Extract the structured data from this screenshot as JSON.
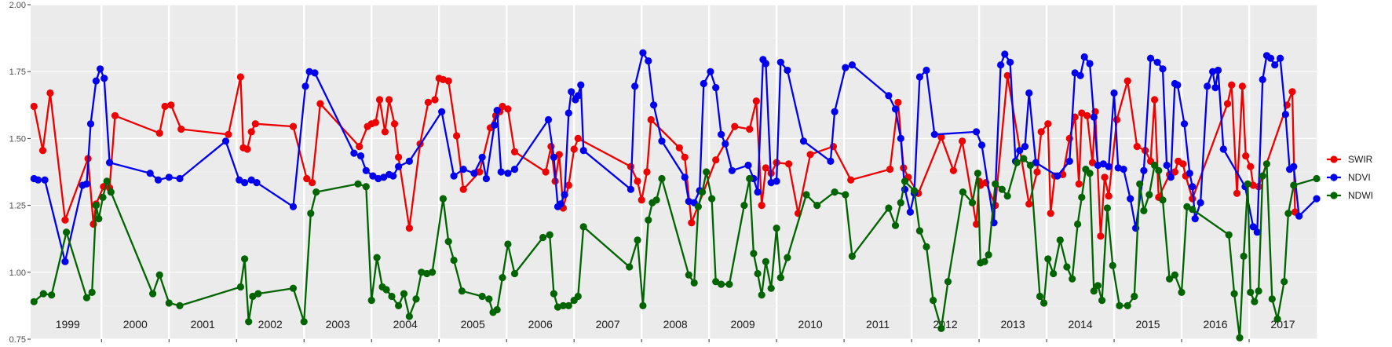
{
  "chart_data": {
    "type": "line",
    "title": "",
    "xlabel": "",
    "ylabel": "",
    "ylim": [
      0.75,
      2.0
    ],
    "xlim": [
      1998.95,
      2018.0
    ],
    "y_ticks": [
      "0.75",
      "1.00",
      "1.25",
      "1.50",
      "1.75",
      "2.00"
    ],
    "year_labels": [
      "1999",
      "2000",
      "2001",
      "2002",
      "2003",
      "2004",
      "2005",
      "2006",
      "2007",
      "2008",
      "2009",
      "2010",
      "2011",
      "2012",
      "2013",
      "2014",
      "2015",
      "2016",
      "2017"
    ],
    "grid": true,
    "legend_position": "right",
    "series": [
      {
        "name": "SWIR",
        "color": "#ee0000",
        "x": [
          1999.0,
          1999.13,
          1999.24,
          1999.46,
          1999.8,
          1999.88,
          1999.92,
          2000.03,
          2000.12,
          2000.2,
          2000.86,
          2000.94,
          2001.03,
          2001.18,
          2001.88,
          2002.06,
          2002.1,
          2002.16,
          2002.22,
          2002.28,
          2002.84,
          2003.04,
          2003.12,
          2003.24,
          2003.82,
          2003.94,
          2004.0,
          2004.06,
          2004.12,
          2004.2,
          2004.26,
          2004.34,
          2004.4,
          2004.56,
          2004.72,
          2004.84,
          2004.94,
          2005.0,
          2005.06,
          2005.14,
          2005.26,
          2005.36,
          2005.6,
          2005.76,
          2005.84,
          2005.9,
          2005.94,
          2006.02,
          2006.12,
          2006.58,
          2006.66,
          2006.72,
          2006.78,
          2006.84,
          2006.92,
          2007.0,
          2007.06,
          2007.84,
          2007.94,
          2008.0,
          2008.08,
          2008.14,
          2008.56,
          2008.64,
          2008.74,
          2009.1,
          2009.38,
          2009.6,
          2009.7,
          2009.78,
          2009.84,
          2009.92,
          2010.0,
          2010.18,
          2010.32,
          2010.5,
          2010.84,
          2011.1,
          2011.68,
          2011.8,
          2011.88,
          2011.95,
          2012.1,
          2012.44,
          2012.62,
          2012.75,
          2012.96,
          2013.0,
          2013.02,
          2013.1,
          2013.24,
          2013.42,
          2013.74,
          2013.86,
          2013.92,
          2014.02,
          2014.06,
          2014.12,
          2014.24,
          2014.34,
          2014.42,
          2014.48,
          2014.52,
          2014.6,
          2014.68,
          2014.72,
          2014.8,
          2014.86,
          2014.92,
          2015.04,
          2015.2,
          2015.34,
          2015.46,
          2015.54,
          2015.6,
          2015.66,
          2015.82,
          2015.9,
          2015.95,
          2016.02,
          2016.06,
          2016.16,
          2016.68,
          2016.74,
          2016.82,
          2016.9,
          2016.95,
          2017.02,
          2017.06,
          2017.14,
          2017.56,
          2017.64,
          2017.68
        ]
      },
      {
        "name": "NDVI",
        "color": "#0000ee",
        "x": [
          1999.0,
          1999.06,
          1999.16,
          1999.46,
          1999.72,
          1999.78,
          1999.84,
          1999.92,
          1999.98,
          2000.04,
          2000.12,
          2000.72,
          2000.84,
          2001.0,
          2001.16,
          2001.84,
          2002.04,
          2002.12,
          2002.22,
          2002.3,
          2002.84,
          2003.02,
          2003.08,
          2003.16,
          2003.74,
          2003.84,
          2003.92,
          2004.02,
          2004.1,
          2004.18,
          2004.26,
          2004.32,
          2004.4,
          2004.56,
          2005.04,
          2005.22,
          2005.36,
          2005.52,
          2005.64,
          2005.7,
          2005.82,
          2005.86,
          2005.92,
          2006.02,
          2006.12,
          2006.62,
          2006.7,
          2006.76,
          2006.8,
          2006.86,
          2006.92,
          2006.96,
          2007.02,
          2007.06,
          2007.1,
          2007.14,
          2007.84,
          2007.9,
          2008.02,
          2008.1,
          2008.18,
          2008.3,
          2008.64,
          2008.7,
          2008.78,
          2008.86,
          2008.92,
          2009.02,
          2009.1,
          2009.18,
          2009.24,
          2009.34,
          2009.58,
          2009.66,
          2009.72,
          2009.8,
          2009.84,
          2009.92,
          2010.0,
          2010.06,
          2010.16,
          2010.4,
          2010.8,
          2010.86,
          2011.02,
          2011.12,
          2011.66,
          2011.76,
          2011.84,
          2011.9,
          2011.98,
          2012.04,
          2012.12,
          2012.22,
          2012.34,
          2012.96,
          2013.04,
          2013.22,
          2013.32,
          2013.38,
          2013.46,
          2013.54,
          2013.6,
          2013.68,
          2013.74,
          2013.84,
          2014.16,
          2014.34,
          2014.42,
          2014.5,
          2014.56,
          2014.64,
          2014.7,
          2014.76,
          2014.84,
          2014.92,
          2015.0,
          2015.06,
          2015.14,
          2015.24,
          2015.32,
          2015.44,
          2015.54,
          2015.64,
          2015.72,
          2015.78,
          2015.84,
          2015.9,
          2015.94,
          2016.04,
          2016.12,
          2016.16,
          2016.2,
          2016.28,
          2016.38,
          2016.46,
          2016.5,
          2016.54,
          2016.62,
          2016.94,
          2017.06,
          2017.12,
          2017.2,
          2017.26,
          2017.32,
          2017.38,
          2017.46,
          2017.54,
          2017.6,
          2017.66,
          2017.74,
          2018.0
        ]
      },
      {
        "name": "NDWI",
        "color": "#006400",
        "x": [
          1999.0,
          1999.14,
          1999.26,
          1999.48,
          1999.78,
          1999.86,
          1999.92,
          1999.96,
          2000.02,
          2000.08,
          2000.14,
          2000.76,
          2000.86,
          2001.0,
          2001.16,
          2002.06,
          2002.12,
          2002.18,
          2002.24,
          2002.32,
          2002.84,
          2003.0,
          2003.1,
          2003.18,
          2003.8,
          2003.92,
          2004.0,
          2004.08,
          2004.16,
          2004.22,
          2004.3,
          2004.4,
          2004.48,
          2004.56,
          2004.66,
          2004.74,
          2004.82,
          2004.9,
          2005.06,
          2005.14,
          2005.22,
          2005.34,
          2005.64,
          2005.74,
          2005.8,
          2005.86,
          2005.94,
          2006.02,
          2006.12,
          2006.54,
          2006.64,
          2006.7,
          2006.76,
          2006.84,
          2006.92,
          2007.0,
          2007.06,
          2007.14,
          2007.82,
          2007.94,
          2008.02,
          2008.1,
          2008.16,
          2008.22,
          2008.3,
          2008.7,
          2008.78,
          2008.84,
          2008.9,
          2008.96,
          2009.04,
          2009.1,
          2009.18,
          2009.3,
          2009.52,
          2009.6,
          2009.66,
          2009.72,
          2009.78,
          2009.84,
          2009.92,
          2010.0,
          2010.06,
          2010.16,
          2010.44,
          2010.6,
          2010.86,
          2011.02,
          2011.12,
          2011.66,
          2011.76,
          2011.84,
          2011.9,
          2012.04,
          2012.12,
          2012.22,
          2012.32,
          2012.44,
          2012.54,
          2012.76,
          2012.9,
          2012.98,
          2013.02,
          2013.08,
          2013.14,
          2013.24,
          2013.34,
          2013.42,
          2013.56,
          2013.66,
          2013.76,
          2013.9,
          2013.96,
          2014.02,
          2014.1,
          2014.2,
          2014.3,
          2014.38,
          2014.46,
          2014.52,
          2014.58,
          2014.64,
          2014.7,
          2014.76,
          2014.82,
          2014.9,
          2014.98,
          2015.08,
          2015.2,
          2015.3,
          2015.38,
          2015.44,
          2015.52,
          2015.6,
          2015.66,
          2015.72,
          2015.82,
          2015.9,
          2016.0,
          2016.08,
          2016.16,
          2016.7,
          2016.78,
          2016.86,
          2016.92,
          2016.98,
          2017.02,
          2017.08,
          2017.14,
          2017.2,
          2017.26,
          2017.34,
          2017.42,
          2017.52,
          2017.58,
          2017.66,
          2018.0
        ]
      }
    ]
  }
}
